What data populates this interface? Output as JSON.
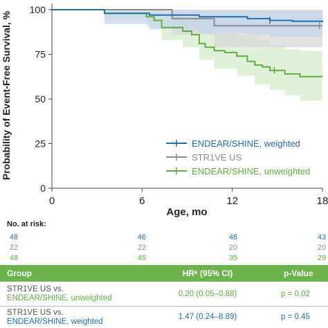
{
  "colors": {
    "blue": "#1f6fb3",
    "gray": "#8c8c8c",
    "green": "#5fae3f",
    "blue_band": "#c4d6ea",
    "gray_band": "#d6d6d6",
    "green_band": "#dcefd2",
    "table_header": "#6bb34a"
  },
  "chart_data": {
    "type": "line",
    "ylabel": "Probability of Event-Free Survival, %",
    "xlabel": "Age, mo",
    "xlim": [
      0,
      18
    ],
    "ylim": [
      0,
      100
    ],
    "x_ticks": [
      0,
      6,
      12,
      18
    ],
    "y_ticks": [
      0,
      25,
      50,
      75,
      100
    ],
    "x_tick_labels": [
      "0",
      "6",
      "12",
      "18"
    ],
    "y_tick_labels": [
      "0",
      "25",
      "50",
      "75",
      "100"
    ],
    "legend_position": "center-right",
    "series": [
      {
        "name": "ENDEAR/SHINE, weighted",
        "color": "#1f6fb3",
        "steps": [
          [
            0,
            100
          ],
          [
            3.5,
            98
          ],
          [
            6.5,
            97
          ],
          [
            9.8,
            96
          ],
          [
            13,
            95
          ],
          [
            14.5,
            94
          ],
          [
            16,
            93.5
          ],
          [
            18,
            93
          ]
        ],
        "ci_lower": [
          [
            0,
            100
          ],
          [
            3.5,
            92
          ],
          [
            6.5,
            89
          ],
          [
            9.8,
            87
          ],
          [
            13,
            86
          ],
          [
            14.5,
            85
          ],
          [
            18,
            84
          ]
        ],
        "ci_upper": [
          [
            0,
            100
          ],
          [
            3.5,
            100
          ],
          [
            6.5,
            100
          ],
          [
            9.8,
            99.5
          ],
          [
            18,
            99
          ]
        ],
        "censor_marks": [
          [
            14.5,
            94
          ]
        ]
      },
      {
        "name": "STR1VE US",
        "color": "#8c8c8c",
        "steps": [
          [
            0,
            100
          ],
          [
            3.5,
            100
          ],
          [
            8,
            100
          ],
          [
            8,
            95
          ],
          [
            10.8,
            95
          ],
          [
            10.8,
            91
          ],
          [
            18,
            91
          ]
        ],
        "ci_lower": [
          [
            0,
            100
          ],
          [
            3.5,
            100
          ],
          [
            7.8,
            100
          ],
          [
            8,
            86
          ],
          [
            10.8,
            79
          ],
          [
            18,
            79
          ]
        ],
        "ci_upper": [
          [
            0,
            100
          ],
          [
            18,
            100
          ]
        ],
        "censor_marks": [
          [
            17.8,
            91
          ]
        ]
      },
      {
        "name": "ENDEAR/SHINE, unweighted",
        "color": "#5fae3f",
        "steps": [
          [
            0,
            100
          ],
          [
            3.5,
            98
          ],
          [
            6.3,
            96
          ],
          [
            6.8,
            94
          ],
          [
            7.3,
            90
          ],
          [
            8.7,
            88
          ],
          [
            9.3,
            86
          ],
          [
            9.8,
            81
          ],
          [
            10.2,
            79
          ],
          [
            10.8,
            77
          ],
          [
            11.5,
            76
          ],
          [
            12.3,
            74
          ],
          [
            13,
            71
          ],
          [
            13.5,
            69
          ],
          [
            14,
            68
          ],
          [
            14.5,
            66
          ],
          [
            15.5,
            64
          ],
          [
            16.5,
            62.5
          ],
          [
            18,
            62.5
          ]
        ],
        "ci_lower": [
          [
            0,
            100
          ],
          [
            3.5,
            95
          ],
          [
            6.3,
            90
          ],
          [
            7.3,
            83
          ],
          [
            8.7,
            79
          ],
          [
            9.8,
            72
          ],
          [
            10.8,
            67
          ],
          [
            12.3,
            63
          ],
          [
            13.5,
            58
          ],
          [
            14.5,
            55
          ],
          [
            15.5,
            52
          ],
          [
            16.5,
            49
          ],
          [
            18,
            49
          ]
        ],
        "ci_upper": [
          [
            0,
            100
          ],
          [
            3.5,
            100
          ],
          [
            6.3,
            100
          ],
          [
            7.3,
            97
          ],
          [
            8.7,
            95
          ],
          [
            9.8,
            92
          ],
          [
            10.8,
            89
          ],
          [
            12.3,
            86
          ],
          [
            13.5,
            83
          ],
          [
            14.5,
            80
          ],
          [
            15.5,
            78
          ],
          [
            16.5,
            77
          ],
          [
            18,
            76
          ]
        ],
        "censor_marks": [
          [
            14.8,
            66
          ]
        ]
      }
    ],
    "at_risk": {
      "title": "No. at risk:",
      "times": [
        0,
        6,
        12,
        18
      ],
      "rows": [
        {
          "values": [
            "48",
            "46",
            "46",
            "43"
          ],
          "color": "#1f6fb3"
        },
        {
          "values": [
            "22",
            "22",
            "20",
            "20"
          ],
          "color": "#8c8c8c"
        },
        {
          "values": [
            "48",
            "45",
            "35",
            "29"
          ],
          "color": "#5fae3f"
        }
      ]
    }
  },
  "table": {
    "headers": {
      "group": "Group",
      "hr": "HRᵃ (95% CI)",
      "pvalue": "p-Value"
    },
    "rows": [
      {
        "group_line1": "STR1VE US vs.",
        "group_line2": "ENDEAR/SHINE, unweighted",
        "hr": "0.20 (0.05–0.88)",
        "pvalue": "p = 0.02"
      },
      {
        "group_line1": "STR1VE US vs.",
        "group_line2": "ENDEAR/SHINE, weighted",
        "hr": "1.47 (0.24–8.89)",
        "pvalue": "p = 0.45"
      }
    ]
  }
}
